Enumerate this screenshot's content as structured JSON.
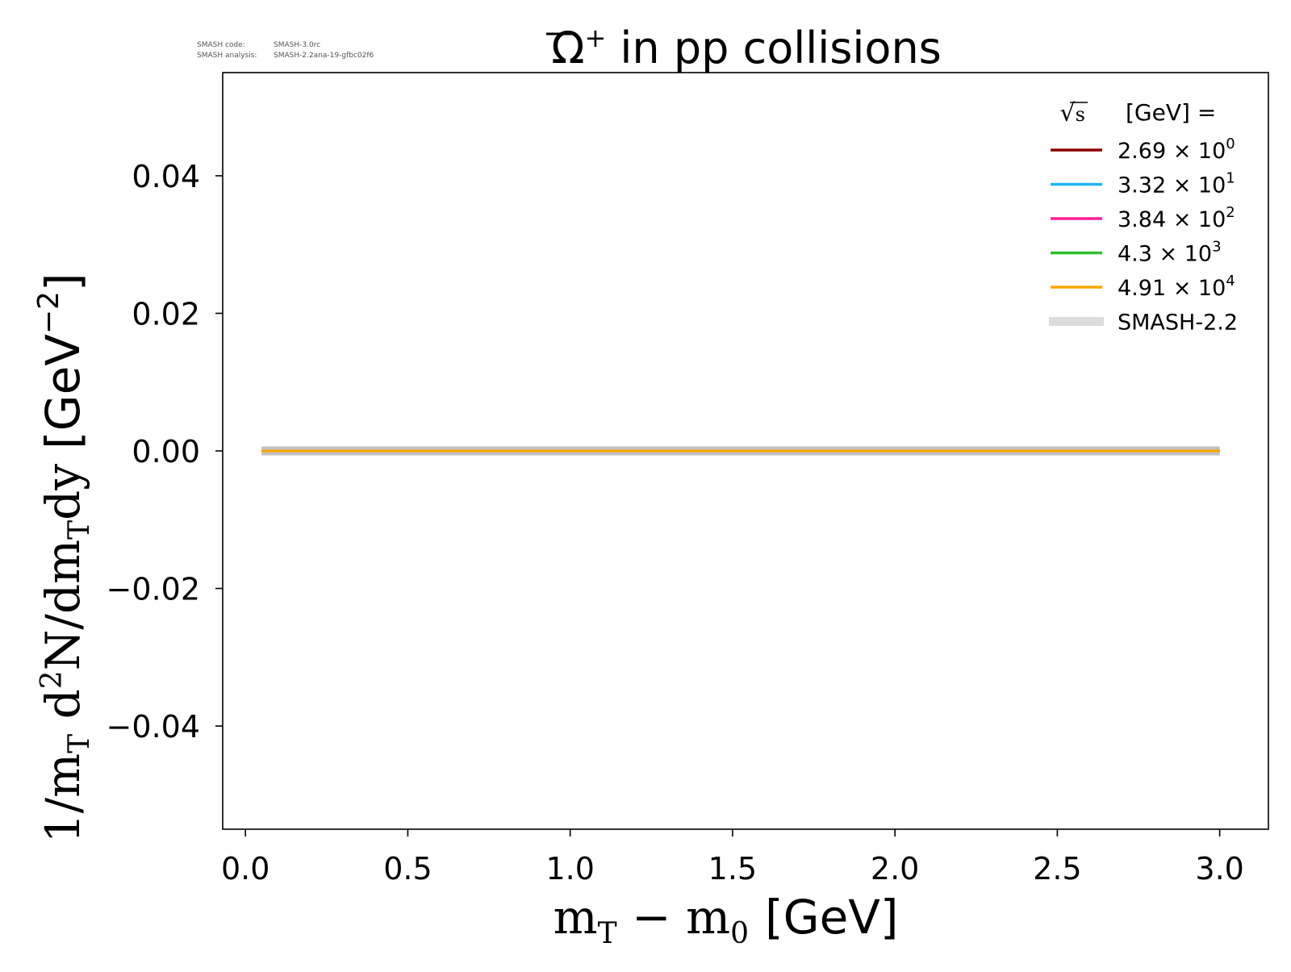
{
  "version_info": {
    "code_label": "SMASH code:",
    "code_value": "SMASH-3.0rc",
    "analysis_label": "SMASH analysis:",
    "analysis_value": "SMASH-2.2ana-19-gfbc02f6"
  },
  "chart_data": {
    "type": "line",
    "title_main": "Ω",
    "title_sup": "+",
    "title_rest": " in pp collisions",
    "xlabel_math": "mT − m0",
    "xlabel_unit": "[GeV]",
    "ylabel_math": "1/mT d²N/dmTdy",
    "ylabel_unit": "[GeV⁻²]",
    "xlim": [
      -0.07,
      3.15
    ],
    "ylim": [
      -0.055,
      0.055
    ],
    "xticks": [
      0.0,
      0.5,
      1.0,
      1.5,
      2.0,
      2.5,
      3.0
    ],
    "xtick_labels": [
      "0.0",
      "0.5",
      "1.0",
      "1.5",
      "2.0",
      "2.5",
      "3.0"
    ],
    "yticks": [
      0.04,
      0.02,
      0.0,
      -0.02,
      -0.04
    ],
    "ytick_labels": [
      "0.04",
      "0.02",
      "0.00",
      "−0.02",
      "−0.04"
    ],
    "legend_position": "top-right",
    "legend_title": "[GeV] =",
    "legend_title_symbol": "√s",
    "series": [
      {
        "mantissa": "2.69",
        "exponent": "0",
        "color": "#8b0000",
        "x": [
          0.05,
          3.0
        ],
        "y": [
          0,
          0
        ]
      },
      {
        "mantissa": "3.32",
        "exponent": "1",
        "color": "#1fb4f0",
        "x": [
          0.05,
          3.0
        ],
        "y": [
          0,
          0
        ]
      },
      {
        "mantissa": "3.84",
        "exponent": "2",
        "color": "#ff1f96",
        "x": [
          0.05,
          3.0
        ],
        "y": [
          0,
          0
        ]
      },
      {
        "mantissa": "4.3",
        "exponent": "3",
        "color": "#2ec02e",
        "x": [
          0.05,
          3.0
        ],
        "y": [
          0,
          0
        ]
      },
      {
        "mantissa": "4.91",
        "exponent": "4",
        "color": "#ffa500",
        "x": [
          0.05,
          3.0
        ],
        "y": [
          0,
          0
        ]
      }
    ],
    "reference": {
      "name": "SMASH-2.2",
      "color": "#c0c0c0",
      "x": [
        0.05,
        3.0
      ],
      "y": [
        0,
        0
      ]
    }
  }
}
